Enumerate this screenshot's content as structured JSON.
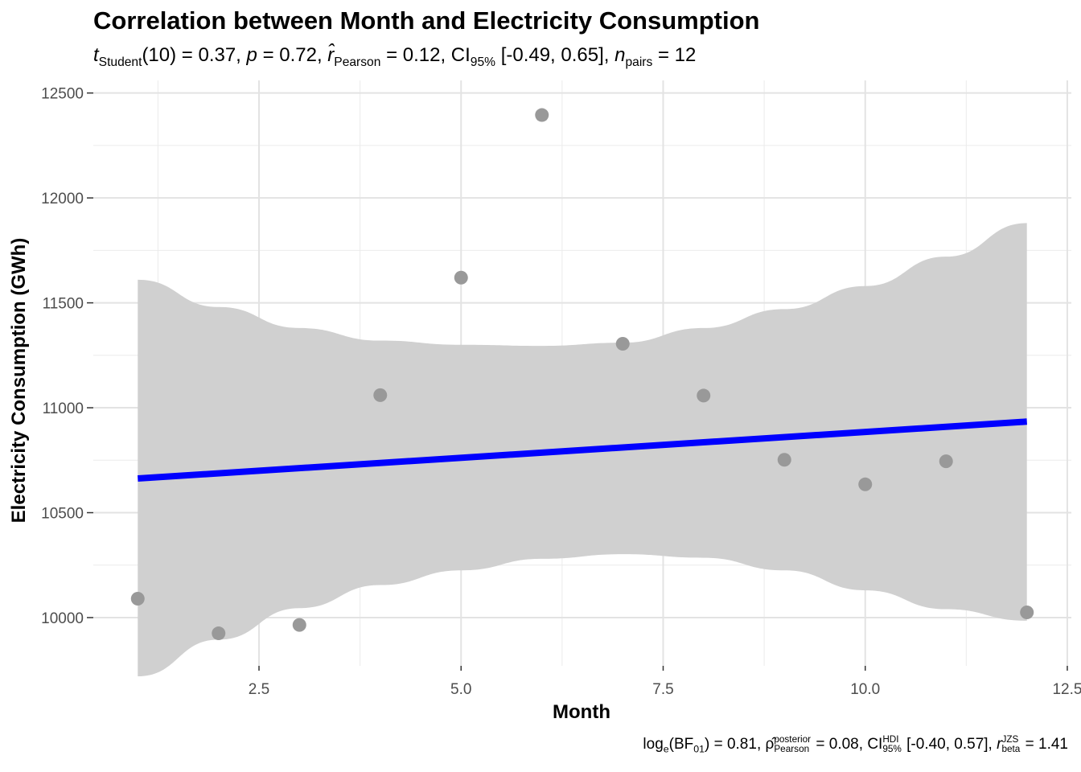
{
  "chart_data": {
    "type": "scatter",
    "title": "Correlation between Month and Electricity Consumption",
    "subtitle": {
      "t_symbol": "t",
      "t_sub": "Student",
      "t_value": "(10) = 0.37,",
      "p_symbol": "p",
      "p_value": "= 0.72,",
      "r_symbol": "r̂",
      "r_sub": "Pearson",
      "r_value": "= 0.12,",
      "ci_symbol": "CI",
      "ci_sub": "95%",
      "ci_value": "[-0.49, 0.65],",
      "n_symbol": "n",
      "n_sub": "pairs",
      "n_value": "= 12"
    },
    "caption": {
      "log_text": "log",
      "log_sub": "e",
      "bf_text": "(BF",
      "bf_sub": "01",
      "bf_value": ") = 0.81,",
      "rho_symbol": "ρ̂",
      "rho_sup": "posterior",
      "rho_sub": "Pearson",
      "rho_value": "= 0.08,",
      "ci_symbol": "CI",
      "ci_sup": "HDI",
      "ci_sub": "95%",
      "ci_value": "[-0.40, 0.57],",
      "r_symbol": "r",
      "r_sup": "JZS",
      "r_sub": "beta",
      "r_value": "= 1.41"
    },
    "xlabel": "Month",
    "ylabel": "Electricity Consumption (GWh)",
    "xlim": [
      0.45,
      12.55
    ],
    "ylim": [
      9770,
      12560
    ],
    "x_ticks": [
      2.5,
      5.0,
      7.5,
      10.0,
      12.5
    ],
    "x_tick_labels": [
      "2.5",
      "5.0",
      "7.5",
      "10.0",
      "12.5"
    ],
    "y_ticks": [
      10000,
      10500,
      11000,
      11500,
      12000,
      12500
    ],
    "y_tick_labels": [
      "10000",
      "10500",
      "11000",
      "11500",
      "12000",
      "12500"
    ],
    "grid": true,
    "points": {
      "x": [
        1,
        2,
        3,
        4,
        5,
        6,
        7,
        8,
        9,
        10,
        11,
        12
      ],
      "y": [
        10090,
        9925,
        9965,
        11060,
        11620,
        12395,
        11305,
        11058,
        10752,
        10635,
        10745,
        10025
      ],
      "color": "#999999"
    },
    "regression": {
      "x": [
        1,
        12
      ],
      "y": [
        10663,
        10934
      ],
      "color": "#0000FF"
    },
    "confidence_band": {
      "color": "#D0D0D0",
      "x": [
        1,
        2,
        3,
        4,
        5,
        6,
        7,
        8,
        9,
        10,
        11,
        12
      ],
      "lower": [
        9720,
        9895,
        10045,
        10155,
        10225,
        10280,
        10302,
        10285,
        10225,
        10130,
        10040,
        9985
      ],
      "upper": [
        11610,
        11480,
        11380,
        11320,
        11300,
        11295,
        11310,
        11380,
        11470,
        11580,
        11720,
        11880
      ]
    }
  }
}
